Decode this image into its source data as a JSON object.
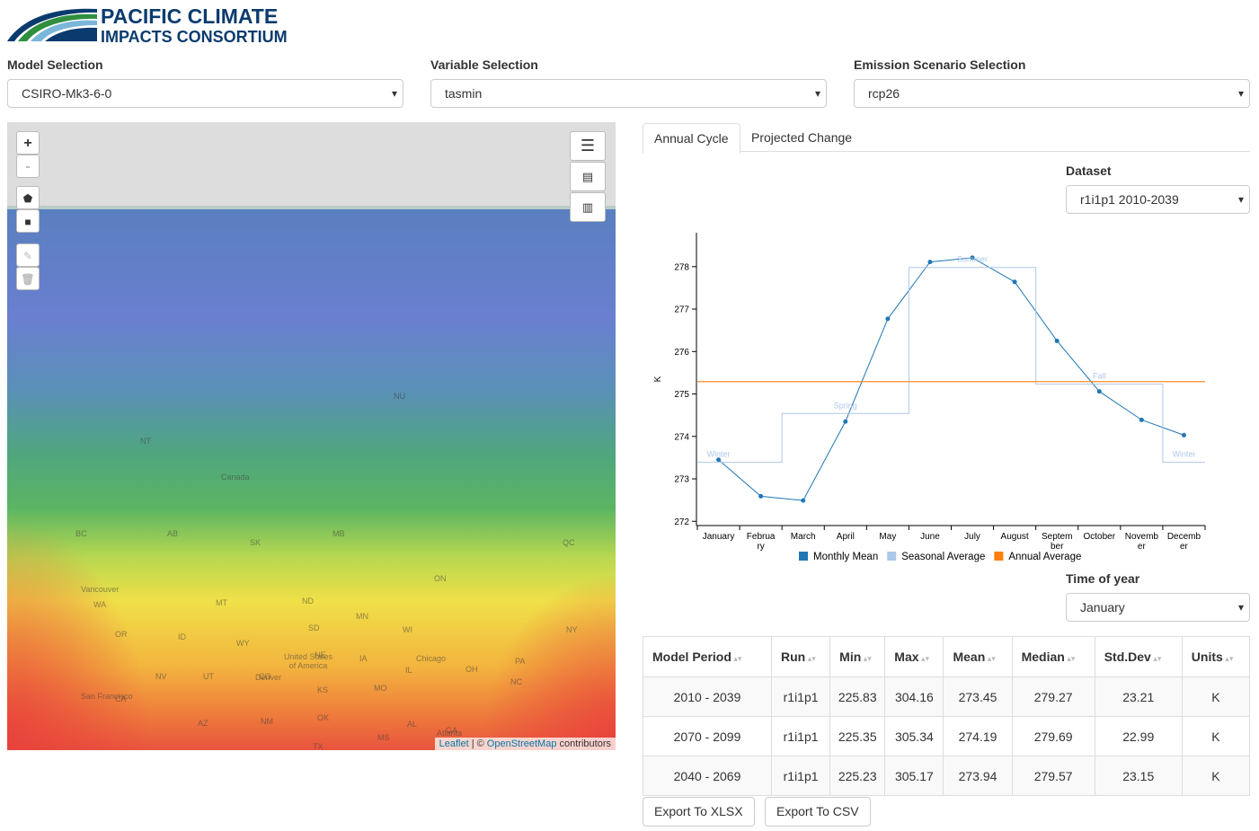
{
  "header": {
    "logo_line1": "PACIFIC CLIMATE",
    "logo_line2": "IMPACTS CONSORTIUM"
  },
  "selectors": [
    {
      "label": "Model Selection",
      "value": "CSIRO-Mk3-6-0"
    },
    {
      "label": "Variable Selection",
      "value": "tasmin"
    },
    {
      "label": "Emission Scenario Selection",
      "value": "rcp26"
    }
  ],
  "map": {
    "zoom_in": "+",
    "zoom_out": "-",
    "labels": [
      "Canada",
      "NT",
      "NU",
      "BC",
      "AB",
      "SK",
      "MB",
      "ON",
      "QC",
      "WA",
      "MT",
      "ND",
      "MN",
      "WI",
      "OR",
      "ID",
      "WY",
      "SD",
      "NE",
      "IA",
      "NV",
      "UT",
      "CO",
      "KS",
      "MO",
      "IL",
      "OH",
      "PA",
      "CA",
      "AZ",
      "NM",
      "OK",
      "TX",
      "MS",
      "AL",
      "GA",
      "NC",
      "United States of America",
      "Vancouver",
      "San Francisco",
      "Denver",
      "Chicago",
      "Atlanta",
      "NY"
    ],
    "attribution_leaflet": "Leaflet",
    "attribution_sep": "| ©",
    "attribution_osm": "OpenStreetMap",
    "attribution_rest": "contributors"
  },
  "tabs": [
    "Annual Cycle",
    "Projected Change"
  ],
  "dataset": {
    "label": "Dataset",
    "value": "r1i1p1 2010-2039"
  },
  "chart_data": {
    "type": "line",
    "y_label": "K",
    "categories": [
      "January",
      "February",
      "March",
      "April",
      "May",
      "June",
      "July",
      "August",
      "September",
      "October",
      "November",
      "December"
    ],
    "ylim": [
      271.9,
      278.8
    ],
    "yticks": [
      272,
      273,
      274,
      275,
      276,
      277,
      278
    ],
    "series": [
      {
        "name": "Monthly Mean",
        "color": "#1f77b4",
        "values": [
          273.45,
          272.59,
          272.49,
          274.35,
          276.77,
          278.11,
          278.21,
          277.64,
          276.25,
          275.06,
          274.39,
          274.03
        ]
      },
      {
        "name": "Seasonal Average",
        "color": "#aec7e8",
        "step": true,
        "values": [
          273.39,
          273.39,
          274.54,
          274.54,
          274.54,
          277.98,
          277.98,
          277.98,
          275.23,
          275.23,
          275.23,
          273.39
        ],
        "labels": [
          "Winter",
          null,
          null,
          "Spring",
          null,
          null,
          "Summer",
          null,
          null,
          "Fall",
          null,
          "Winter"
        ]
      },
      {
        "name": "Annual Average",
        "color": "#ff7f0e",
        "value": 275.29
      }
    ]
  },
  "time_of_year": {
    "label": "Time of year",
    "value": "January"
  },
  "table": {
    "headers": [
      "Model Period",
      "Run",
      "Min",
      "Max",
      "Mean",
      "Median",
      "Std.Dev",
      "Units"
    ],
    "rows": [
      [
        "2010 - 2039",
        "r1i1p1",
        "225.83",
        "304.16",
        "273.45",
        "279.27",
        "23.21",
        "K"
      ],
      [
        "2070 - 2099",
        "r1i1p1",
        "225.35",
        "305.34",
        "274.19",
        "279.69",
        "22.99",
        "K"
      ],
      [
        "2040 - 2069",
        "r1i1p1",
        "225.23",
        "305.17",
        "273.94",
        "279.57",
        "23.15",
        "K"
      ]
    ]
  },
  "buttons": [
    "Export To XLSX",
    "Export To CSV"
  ]
}
